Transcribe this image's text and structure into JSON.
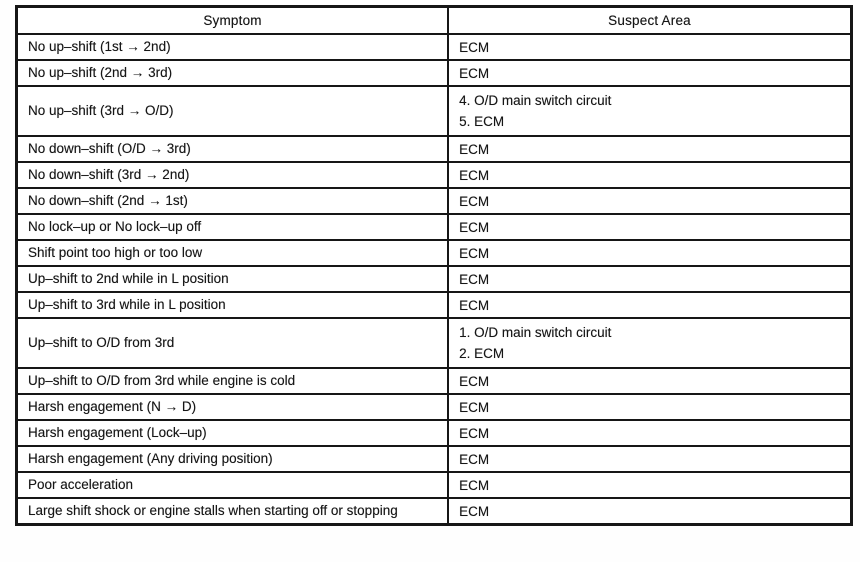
{
  "table": {
    "columns": [
      "Symptom",
      "Suspect Area"
    ],
    "rows": [
      {
        "symptom": "No up–shift (1st → 2nd)",
        "suspect": [
          "ECM"
        ]
      },
      {
        "symptom": "No up–shift (2nd → 3rd)",
        "suspect": [
          "ECM"
        ]
      },
      {
        "symptom": "No up–shift (3rd → O/D)",
        "suspect": [
          "4.  O/D main switch circuit",
          "5.  ECM"
        ]
      },
      {
        "symptom": "No down–shift (O/D → 3rd)",
        "suspect": [
          "ECM"
        ]
      },
      {
        "symptom": "No down–shift (3rd → 2nd)",
        "suspect": [
          "ECM"
        ]
      },
      {
        "symptom": "No down–shift (2nd → 1st)",
        "suspect": [
          "ECM"
        ]
      },
      {
        "symptom": "No lock–up or No lock–up off",
        "suspect": [
          "ECM"
        ]
      },
      {
        "symptom": "Shift point too high or too low",
        "suspect": [
          "ECM"
        ]
      },
      {
        "symptom": "Up–shift to 2nd while in L position",
        "suspect": [
          "ECM"
        ]
      },
      {
        "symptom": "Up–shift to 3rd while in L position",
        "suspect": [
          "ECM"
        ]
      },
      {
        "symptom": "Up–shift to O/D from 3rd",
        "suspect": [
          "1.  O/D main switch circuit",
          "2.  ECM"
        ]
      },
      {
        "symptom": "Up–shift to O/D from 3rd while engine is cold",
        "suspect": [
          "ECM"
        ]
      },
      {
        "symptom": "Harsh engagement (N → D)",
        "suspect": [
          "ECM"
        ]
      },
      {
        "symptom": "Harsh engagement (Lock–up)",
        "suspect": [
          "ECM"
        ]
      },
      {
        "symptom": "Harsh engagement (Any driving position)",
        "suspect": [
          "ECM"
        ]
      },
      {
        "symptom": "Poor acceleration",
        "suspect": [
          "ECM"
        ]
      },
      {
        "symptom": "Large shift shock or engine stalls when starting off or stopping",
        "suspect": [
          "ECM"
        ]
      }
    ]
  }
}
